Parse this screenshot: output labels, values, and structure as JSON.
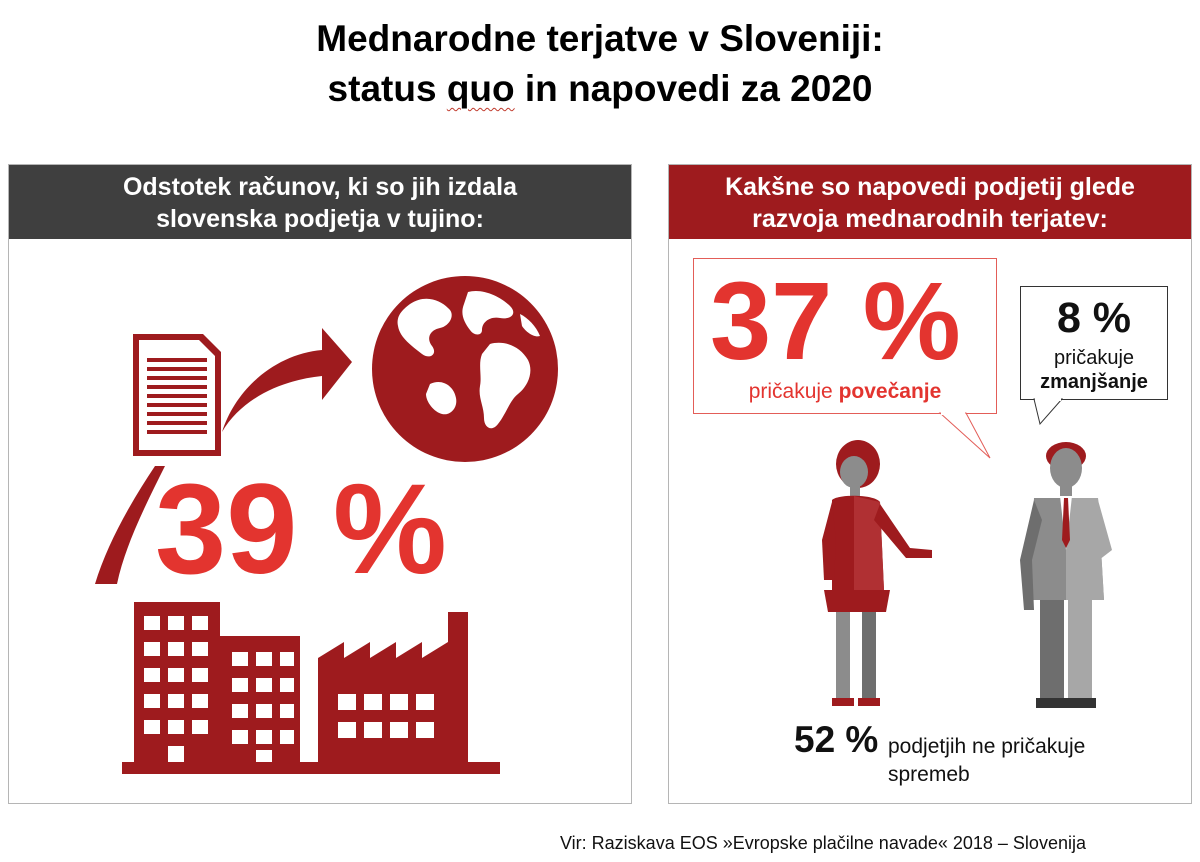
{
  "title": {
    "line1": "Mednarodne terjatve v Sloveniji:",
    "line2_before": "status ",
    "line2_squiggle": "quo",
    "line2_after": " in napovedi za 2020"
  },
  "left_panel": {
    "header_line1": "Odstotek računov, ki so jih izdala",
    "header_line2": "slovenska podjetja v tujino:",
    "percent": "39 %"
  },
  "right_panel": {
    "header_line1": "Kakšne so napovedi podjetij glede",
    "header_line2": "razvoja mednarodnih terjatev:",
    "increase_percent": "37 %",
    "increase_label_prefix": "pričakuje ",
    "increase_label_bold": "povečanje",
    "decrease_percent": "8 %",
    "decrease_label_line1": "pričakuje",
    "decrease_label_line2": "zmanjšanje",
    "nochange_percent": "52 %",
    "nochange_label": "podjetjih ne pričakuje spremeb",
    "nochange_label_exact": "podjetjih ne pričakuje spremeb"
  },
  "source": "Vir: Raziskava EOS »Evropske plačilne navade« 2018 – Slovenija",
  "colors": {
    "accent_red": "#e3342f",
    "dark_red": "#9e1b1e",
    "dark_grey": "#3f3f3f",
    "mid_grey": "#8c8c8c"
  },
  "icons": [
    "document-icon",
    "arrow-icon",
    "globe-icon",
    "factory-icon",
    "woman-icon",
    "man-icon"
  ]
}
